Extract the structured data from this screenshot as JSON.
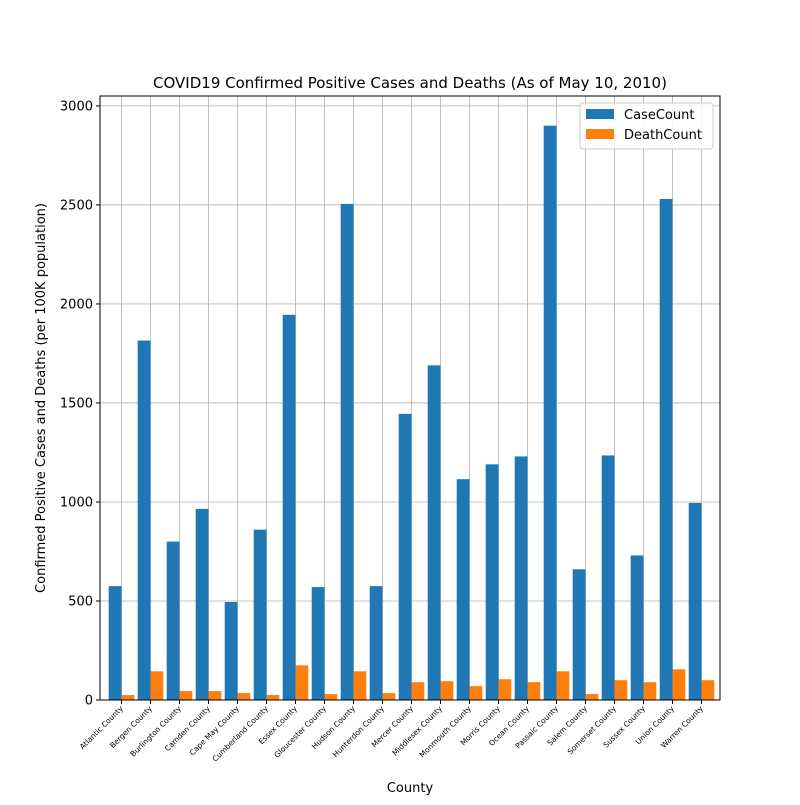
{
  "chart_data": {
    "type": "bar",
    "title": "COVID19 Confirmed Positive Cases and Deaths (As of May 10, 2010)",
    "xlabel": "County",
    "ylabel": "Confirmed Positive Cases and Deaths (per 100K population)",
    "ylim": [
      0,
      3050
    ],
    "yticks": [
      0,
      500,
      1000,
      1500,
      2000,
      2500,
      3000
    ],
    "grid": true,
    "legend_position": "top-right",
    "categories": [
      "Atlantic County",
      "Bergen County",
      "Burlington County",
      "Camden County",
      "Cape May County",
      "Cumberland County",
      "Essex County",
      "Gloucester County",
      "Hudson County",
      "Hunterdon County",
      "Mercer County",
      "Middlesex County",
      "Monmouth County",
      "Morris County",
      "Ocean County",
      "Passaic County",
      "Salem County",
      "Somerset County",
      "Sussex County",
      "Union County",
      "Warren County"
    ],
    "series": [
      {
        "name": "CaseCount",
        "color": "#1f77b4",
        "values": [
          575,
          1815,
          800,
          965,
          495,
          860,
          1945,
          570,
          2505,
          575,
          1445,
          1690,
          1115,
          1190,
          1230,
          2900,
          660,
          1235,
          730,
          2530,
          995
        ]
      },
      {
        "name": "DeathCount",
        "color": "#ff7f0e",
        "values": [
          25,
          145,
          45,
          45,
          35,
          25,
          175,
          30,
          145,
          35,
          90,
          95,
          70,
          105,
          90,
          145,
          30,
          100,
          90,
          155,
          100
        ]
      }
    ]
  }
}
